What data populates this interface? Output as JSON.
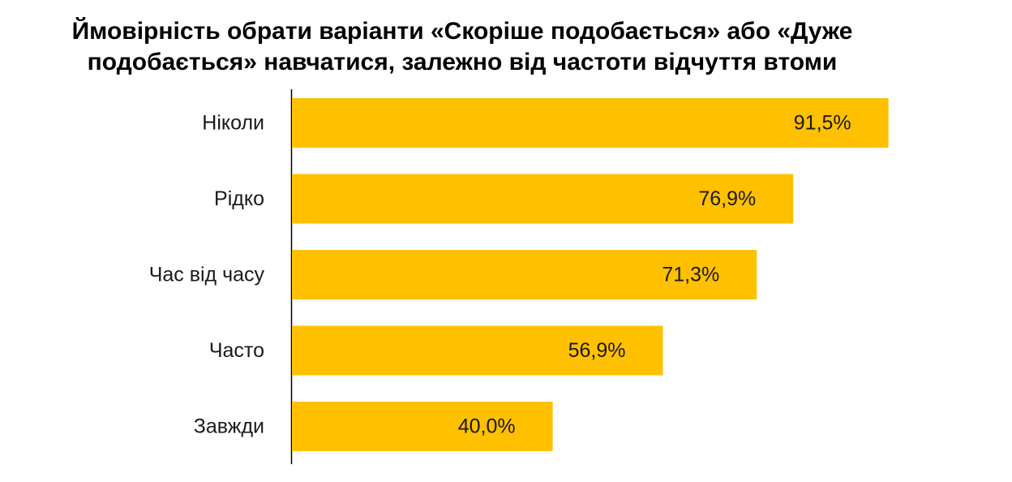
{
  "chart_data": {
    "type": "bar",
    "orientation": "horizontal",
    "title_lines": [
      "Ймовірність обрати варіанти «Скоріше подобається» або «Дуже",
      "подобається» навчатися, залежно від частоти відчуття втоми"
    ],
    "categories": [
      "Ніколи",
      "Рідко",
      "Час від часу",
      "Часто",
      "Завжди"
    ],
    "values": [
      91.5,
      76.9,
      71.3,
      56.9,
      40.0
    ],
    "value_labels": [
      "91,5%",
      "76,9%",
      "71,3%",
      "56,9%",
      "40,0%"
    ],
    "xlim": [
      0,
      100
    ],
    "grid": false,
    "legend": "none",
    "bar_color": "#FFC000",
    "axis_color": "#000000"
  }
}
